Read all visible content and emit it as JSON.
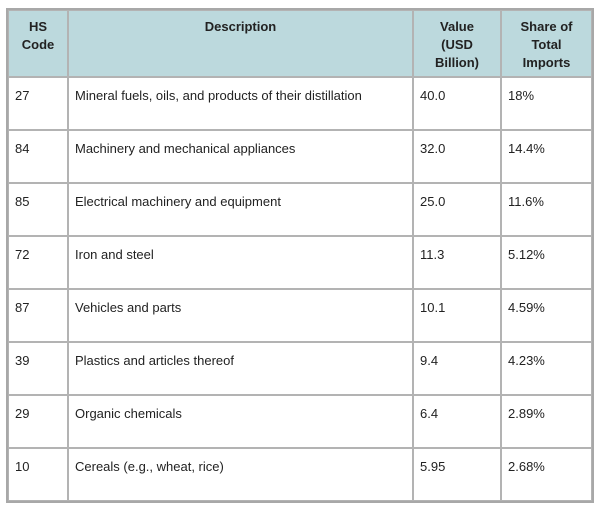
{
  "table": {
    "headers": {
      "hs_code": [
        "HS",
        "Code"
      ],
      "description": "Description",
      "value": [
        "Value",
        "(USD",
        "Billion)"
      ],
      "share": [
        "Share of",
        "Total",
        "Imports"
      ]
    },
    "rows": [
      {
        "code": "27",
        "description": "Mineral fuels, oils, and products of their distillation",
        "value": "40.0",
        "share": "18%"
      },
      {
        "code": "84",
        "description": "Machinery and mechanical appliances",
        "value": "32.0",
        "share": "14.4%"
      },
      {
        "code": "85",
        "description": "Electrical machinery and equipment",
        "value": "25.0",
        "share": "11.6%"
      },
      {
        "code": "72",
        "description": "Iron and steel",
        "value": "11.3",
        "share": "5.12%"
      },
      {
        "code": "87",
        "description": "Vehicles and parts",
        "value": "10.1",
        "share": "4.59%"
      },
      {
        "code": "39",
        "description": "Plastics and articles thereof",
        "value": "9.4",
        "share": "4.23%"
      },
      {
        "code": "29",
        "description": "Organic chemicals",
        "value": "6.4",
        "share": "2.89%"
      },
      {
        "code": "10",
        "description": "Cereals (e.g., wheat, rice)",
        "value": "5.95",
        "share": "2.68%"
      }
    ]
  }
}
